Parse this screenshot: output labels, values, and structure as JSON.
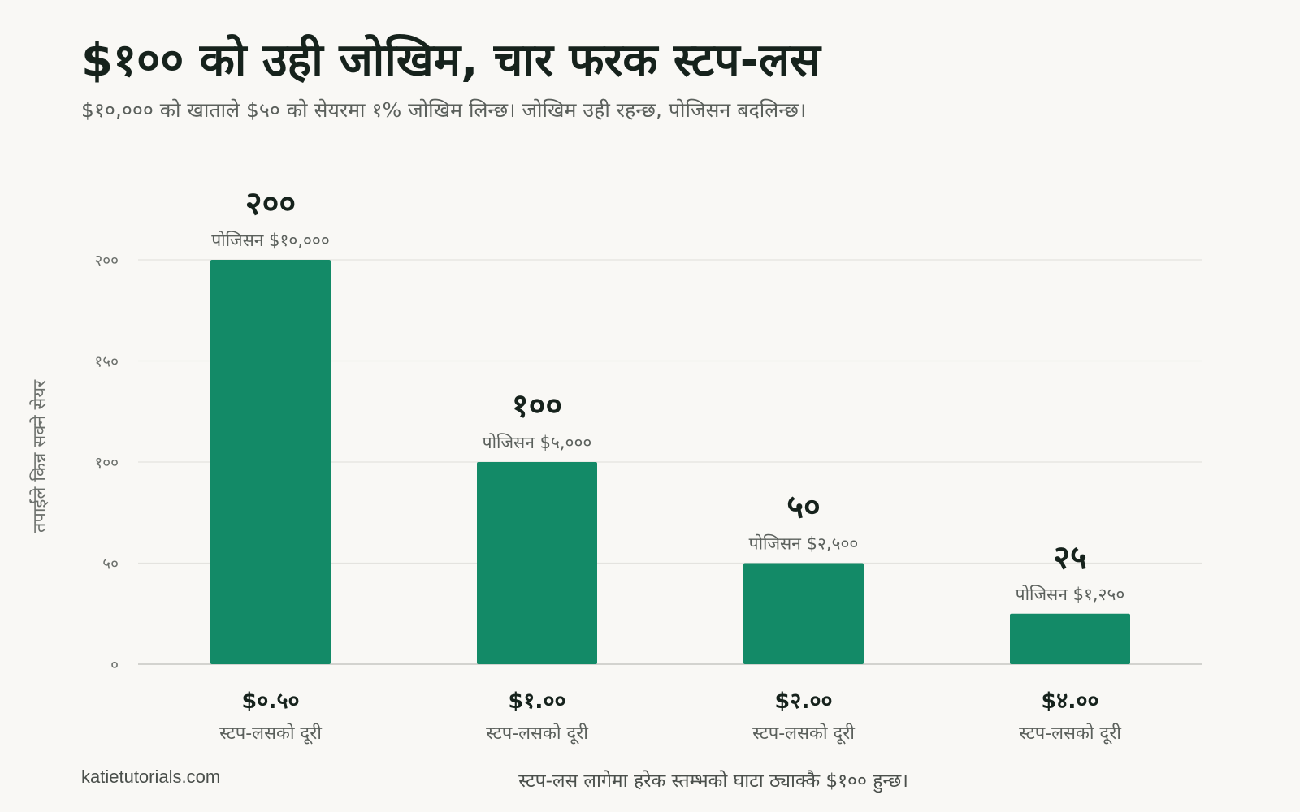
{
  "title": "$१०० को उही जोखिम, चार फरक स्टप-लस",
  "subtitle": "$१०,००० को खाताले $५० को सेयरमा १% जोखिम लिन्छ। जोखिम उही रहन्छ, पोजिसन बदलिन्छ।",
  "footer": {
    "source": "katietutorials.com",
    "note": "स्टप-लस लागेमा हरेक स्तम्भको घाटा ठ्याक्कै $१०० हुन्छ।"
  },
  "chart_data": {
    "type": "bar",
    "title": "$१०० को उही जोखिम, चार फरक स्टप-लस",
    "ylabel": "तपाईंले किन्न सक्ने सेयर",
    "xlabel": "",
    "ylim": [
      0,
      200
    ],
    "yticks": [
      {
        "value": 0,
        "label": "०"
      },
      {
        "value": 50,
        "label": "५०"
      },
      {
        "value": 100,
        "label": "१००"
      },
      {
        "value": 150,
        "label": "१५०"
      },
      {
        "value": 200,
        "label": "२००"
      }
    ],
    "category_caption": "स्टप-लसको दूरी",
    "categories": [
      "$०.५०",
      "$१.००",
      "$२.००",
      "$४.००"
    ],
    "values": [
      200,
      100,
      50,
      25
    ],
    "value_labels": [
      "२००",
      "१००",
      "५०",
      "२५"
    ],
    "position_labels": [
      "पोजिसन $१०,०००",
      "पोजिसन $५,०००",
      "पोजिसन $२,५००",
      "पोजिसन $१,२५०"
    ],
    "bar_color": "#138a67",
    "grid": true
  }
}
